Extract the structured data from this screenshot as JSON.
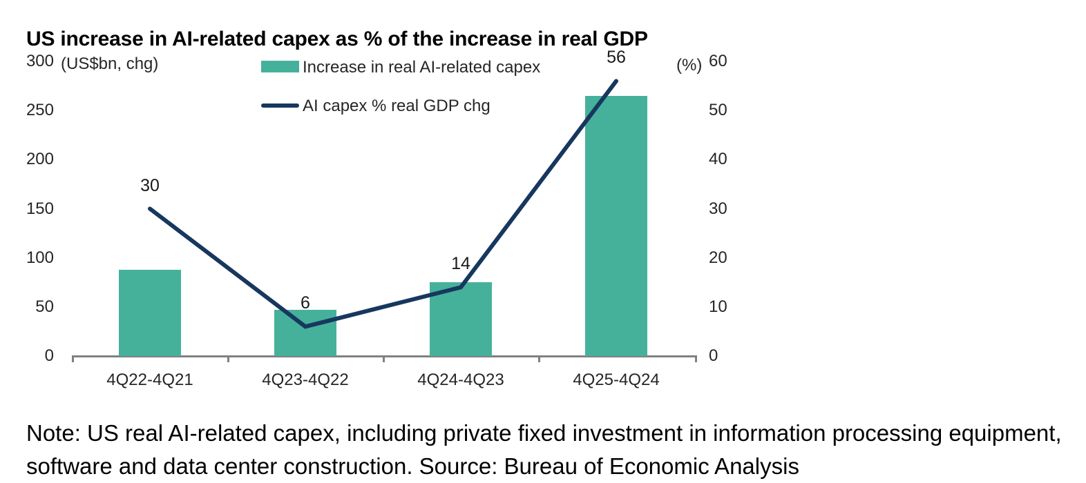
{
  "title": "US increase in AI-related capex as % of the increase in real GDP",
  "note": "Note: US real AI-related capex, including private fixed investment in information processing equipment, software and data center construction. Source: Bureau of Economic Analysis",
  "colors": {
    "bar": "#45B19B",
    "line": "#17375E",
    "axis": "#808080"
  },
  "chart_data": {
    "type": "combo",
    "title": "US increase in AI-related capex as % of the increase in real GDP",
    "categories": [
      "4Q22-4Q21",
      "4Q23-4Q22",
      "4Q24-4Q23",
      "4Q25-4Q24"
    ],
    "series": [
      {
        "name": "Increase in real AI-related capex",
        "type": "bar",
        "axis": "left",
        "unit": "US$bn",
        "color": "#45B19B",
        "values": [
          88,
          47,
          75,
          265
        ]
      },
      {
        "name": "AI capex % real GDP chg",
        "type": "line",
        "axis": "right",
        "unit": "%",
        "color": "#17375E",
        "values": [
          30,
          6,
          14,
          56
        ],
        "data_labels": [
          "30",
          "6",
          "14",
          "56"
        ]
      }
    ],
    "left_axis": {
      "label": "(US$bn, chg)",
      "range": [
        0,
        300
      ],
      "ticks": [
        300,
        250,
        200,
        150,
        100,
        50,
        0
      ]
    },
    "right_axis": {
      "label": "(%)",
      "range": [
        0,
        60
      ],
      "ticks": [
        60,
        50,
        40,
        30,
        20,
        10,
        0
      ]
    },
    "grid": false,
    "legend_position": "top-center"
  }
}
